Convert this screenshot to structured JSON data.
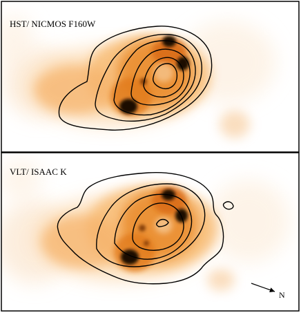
{
  "panels": [
    {
      "label": "HST/ NICMOS F160W"
    },
    {
      "label": "VLT/ ISAAC K"
    }
  ],
  "compass": {
    "label": "N"
  },
  "colors": {
    "frame": "#000000",
    "glow_outer": "#fde7c8",
    "glow_mid": "#f7b56a",
    "glow_inner": "#e07a1e",
    "knot": "#1a0a00",
    "contour": "#000000"
  }
}
